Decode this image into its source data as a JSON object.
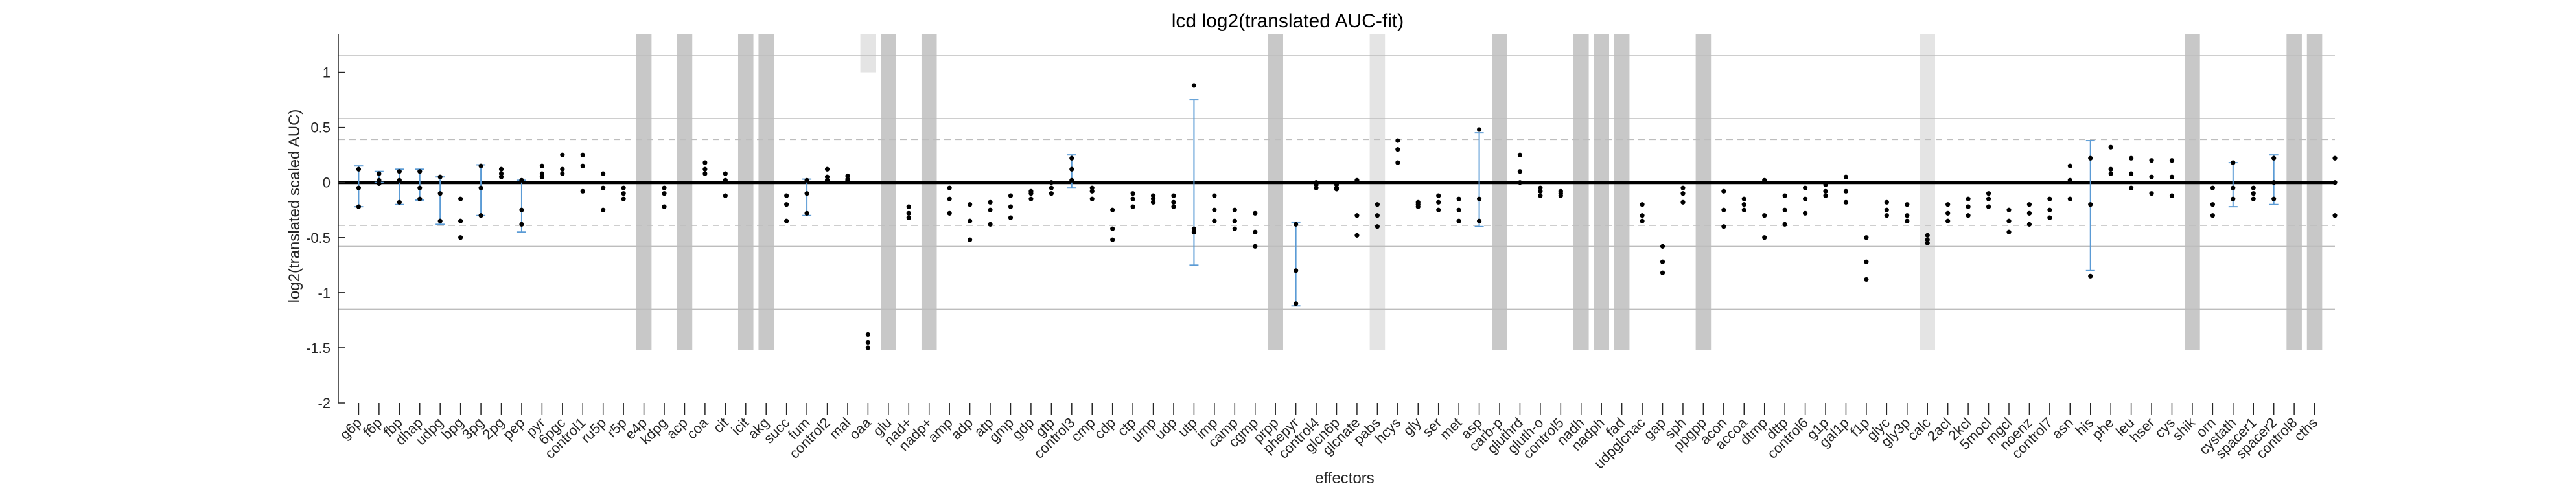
{
  "chart_data": {
    "type": "scatter",
    "title": "lcd log2(translated AUC-fit)",
    "xlabel": "effectors",
    "ylabel": "log2(translated scaled AUC)",
    "ylim": [
      -2,
      1.35
    ],
    "yticks": [
      1,
      0.5,
      0,
      -0.5,
      -1,
      -1.5,
      -2
    ],
    "solid_gridlines": [
      1.15,
      0.58,
      0,
      -0.58,
      -1.15
    ],
    "dashed_gridlines": [
      0.39,
      -0.39
    ],
    "categories": [
      "g6p",
      "f6p",
      "fbp",
      "dhap",
      "udpg",
      "bpg",
      "3pg",
      "2pg",
      "pep",
      "pyr",
      "6pgc",
      "control1",
      "ru5p",
      "r5p",
      "e4p",
      "kdpg",
      "acp",
      "coa",
      "cit",
      "icit",
      "akg",
      "succ",
      "fum",
      "control2",
      "mal",
      "oaa",
      "glu",
      "nad+",
      "nadp+",
      "amp",
      "adp",
      "atp",
      "gmp",
      "gdp",
      "gtp",
      "control3",
      "cmp",
      "cdp",
      "ctp",
      "ump",
      "udp",
      "utp",
      "imp",
      "camp",
      "cgmp",
      "prpp",
      "phepyr",
      "control4",
      "glcn6p",
      "glcnate",
      "pabs",
      "hcys",
      "gly",
      "ser",
      "met",
      "asp",
      "carb-p",
      "gluthrd",
      "gluth-o",
      "control5",
      "nadh",
      "nadph",
      "fad",
      "udpglcnac",
      "gap",
      "sph",
      "ppgpp",
      "acon",
      "accoa",
      "dtmp",
      "dttp",
      "control6",
      "g1p",
      "gal1p",
      "f1p",
      "glyc",
      "gly3p",
      "calc",
      "2acl",
      "2kcl",
      "5mocl",
      "mgcl",
      "noenz",
      "control7",
      "asn",
      "his",
      "phe",
      "leu",
      "hser",
      "cys",
      "shik",
      "orn",
      "cystath",
      "spacer1",
      "spacer2",
      "control8",
      "cths"
    ],
    "points": [
      [
        0.12,
        -0.05,
        -0.22
      ],
      [
        0.08,
        0.02,
        -0.01
      ],
      [
        0.1,
        0.02,
        -0.18
      ],
      [
        0.1,
        -0.05,
        -0.15
      ],
      [
        0.05,
        -0.1,
        -0.35
      ],
      [
        -0.15,
        -0.35,
        -0.5
      ],
      [
        0.15,
        -0.05,
        -0.3
      ],
      [
        0.12,
        0.08,
        0.05
      ],
      [
        0.02,
        -0.25,
        -0.38
      ],
      [
        0.15,
        0.08,
        0.05
      ],
      [
        0.25,
        0.12,
        0.08
      ],
      [
        0.25,
        0.15,
        -0.08
      ],
      [
        0.08,
        -0.05,
        -0.25
      ],
      [
        -0.05,
        -0.1,
        -0.15
      ],
      null,
      [
        -0.05,
        -0.1,
        -0.22
      ],
      null,
      [
        0.18,
        0.12,
        0.08
      ],
      [
        0.08,
        0.02,
        -0.12
      ],
      null,
      null,
      [
        -0.12,
        -0.2,
        -0.35
      ],
      [
        0.02,
        -0.1,
        -0.28
      ],
      [
        0.12,
        0.05,
        0.02
      ],
      [
        0.06,
        0.03,
        0.02
      ],
      [
        -1.38,
        -1.45,
        -1.5
      ],
      null,
      [
        -0.22,
        -0.28,
        -0.32
      ],
      null,
      [
        -0.05,
        -0.15,
        -0.28
      ],
      [
        -0.2,
        -0.35,
        -0.52
      ],
      [
        -0.18,
        -0.25,
        -0.38
      ],
      [
        -0.12,
        -0.22,
        -0.32
      ],
      [
        -0.08,
        -0.1,
        -0.15
      ],
      [
        -0.05,
        0.0,
        -0.1
      ],
      [
        0.22,
        0.12,
        0.02
      ],
      [
        -0.05,
        -0.08,
        -0.15
      ],
      [
        -0.25,
        -0.42,
        -0.52
      ],
      [
        -0.1,
        -0.15,
        -0.22
      ],
      [
        -0.12,
        -0.15,
        -0.18
      ],
      [
        -0.12,
        -0.18,
        -0.22
      ],
      [
        0.88,
        -0.42,
        -0.45
      ],
      [
        -0.12,
        -0.25,
        -0.35
      ],
      [
        -0.25,
        -0.35,
        -0.42
      ],
      [
        -0.28,
        -0.45,
        -0.58
      ],
      null,
      [
        -0.38,
        -0.8,
        -1.1
      ],
      [
        -0.02,
        0.0,
        -0.05
      ],
      [
        -0.02,
        -0.05,
        -0.06
      ],
      [
        0.02,
        -0.3,
        -0.48
      ],
      [
        -0.2,
        -0.3,
        -0.4
      ],
      [
        0.38,
        0.3,
        0.18
      ],
      [
        -0.18,
        -0.2,
        -0.22
      ],
      [
        -0.12,
        -0.18,
        -0.25
      ],
      [
        -0.15,
        -0.25,
        -0.35
      ],
      [
        0.48,
        -0.15,
        -0.35
      ],
      null,
      [
        0.25,
        0.1,
        0.0
      ],
      [
        -0.05,
        -0.08,
        -0.12
      ],
      [
        -0.08,
        -0.1,
        -0.12
      ],
      null,
      null,
      null,
      [
        -0.2,
        -0.3,
        -0.35
      ],
      [
        -0.58,
        -0.72,
        -0.82
      ],
      [
        -0.05,
        -0.1,
        -0.18
      ],
      null,
      [
        -0.08,
        -0.25,
        -0.4
      ],
      [
        -0.15,
        -0.2,
        -0.25
      ],
      [
        0.02,
        -0.3,
        -0.5
      ],
      [
        -0.12,
        -0.25,
        -0.38
      ],
      [
        -0.05,
        -0.15,
        -0.28
      ],
      [
        -0.02,
        -0.08,
        -0.12
      ],
      [
        0.05,
        -0.08,
        -0.18
      ],
      [
        -0.5,
        -0.72,
        -0.88
      ],
      [
        -0.18,
        -0.25,
        -0.3
      ],
      [
        -0.2,
        -0.3,
        -0.35
      ],
      [
        -0.48,
        -0.52,
        -0.55
      ],
      [
        -0.2,
        -0.28,
        -0.35
      ],
      [
        -0.15,
        -0.22,
        -0.3
      ],
      [
        -0.1,
        -0.15,
        -0.22
      ],
      [
        -0.25,
        -0.35,
        -0.45
      ],
      [
        -0.2,
        -0.28,
        -0.38
      ],
      [
        -0.15,
        -0.25,
        -0.32
      ],
      [
        0.15,
        0.02,
        -0.15
      ],
      [
        0.22,
        -0.2,
        -0.85
      ],
      [
        0.32,
        0.12,
        0.08
      ],
      [
        0.22,
        0.08,
        -0.05
      ],
      [
        0.2,
        0.05,
        -0.1
      ],
      [
        0.2,
        0.05,
        -0.12
      ],
      null,
      [
        -0.05,
        -0.2,
        -0.3
      ],
      [
        0.18,
        -0.05,
        -0.15
      ],
      [
        -0.05,
        -0.1,
        -0.15
      ],
      [
        0.22,
        0.0,
        -0.15
      ],
      null,
      null,
      [
        0.22,
        0.0,
        -0.3
      ]
    ],
    "error_bars": [
      [
        0.15,
        -0.22
      ],
      [
        0.1,
        0.0
      ],
      [
        0.12,
        -0.2
      ],
      [
        0.12,
        -0.16
      ],
      [
        0.05,
        -0.38
      ],
      null,
      [
        0.16,
        -0.3
      ],
      null,
      [
        0.02,
        -0.45
      ],
      null,
      null,
      null,
      null,
      null,
      null,
      null,
      null,
      null,
      null,
      null,
      null,
      null,
      [
        0.03,
        -0.3
      ],
      null,
      null,
      null,
      null,
      null,
      null,
      null,
      null,
      null,
      null,
      null,
      null,
      [
        0.25,
        -0.05
      ],
      null,
      null,
      null,
      null,
      null,
      [
        0.75,
        -0.75
      ],
      null,
      null,
      null,
      null,
      [
        -0.36,
        -1.12
      ],
      null,
      null,
      null,
      null,
      null,
      null,
      null,
      null,
      [
        0.45,
        -0.4
      ],
      null,
      null,
      null,
      null,
      null,
      null,
      null,
      null,
      null,
      null,
      null,
      null,
      null,
      null,
      null,
      null,
      null,
      null,
      null,
      null,
      null,
      null,
      null,
      null,
      null,
      null,
      null,
      null,
      null,
      [
        0.38,
        -0.8
      ],
      null,
      null,
      null,
      null,
      null,
      null,
      [
        0.18,
        -0.22
      ],
      null,
      [
        0.25,
        -0.2
      ],
      null,
      null,
      null
    ],
    "excluded_bars": [
      {
        "index": 14,
        "shade": "#c8c8c8"
      },
      {
        "index": 16,
        "shade": "#c8c8c8"
      },
      {
        "index": 19,
        "shade": "#c8c8c8"
      },
      {
        "index": 20,
        "shade": "#c8c8c8"
      },
      {
        "index": 26,
        "shade": "#c8c8c8"
      },
      {
        "index": 28,
        "shade": "#c8c8c8"
      },
      {
        "index": 45,
        "shade": "#c8c8c8"
      },
      {
        "index": 50,
        "shade": "#e4e4e4"
      },
      {
        "index": 56,
        "shade": "#c8c8c8"
      },
      {
        "index": 60,
        "shade": "#c8c8c8"
      },
      {
        "index": 61,
        "shade": "#c8c8c8"
      },
      {
        "index": 62,
        "shade": "#c8c8c8"
      },
      {
        "index": 66,
        "shade": "#c8c8c8"
      },
      {
        "index": 77,
        "shade": "#e4e4e4"
      },
      {
        "index": 90,
        "shade": "#c8c8c8"
      },
      {
        "index": 95,
        "shade": "#c8c8c8"
      },
      {
        "index": 96,
        "shade": "#c8c8c8"
      }
    ],
    "extra_box": {
      "index": 25,
      "y_top": 1.35,
      "y_bottom": 1.0,
      "shade": "#e4e4e4"
    },
    "excluded_bar_y_bottom": -1.52,
    "colors": {
      "errorbar": "#5b9bd5",
      "point": "#000000",
      "zero_line": "#000000",
      "grid": "#bdbdbd"
    }
  }
}
